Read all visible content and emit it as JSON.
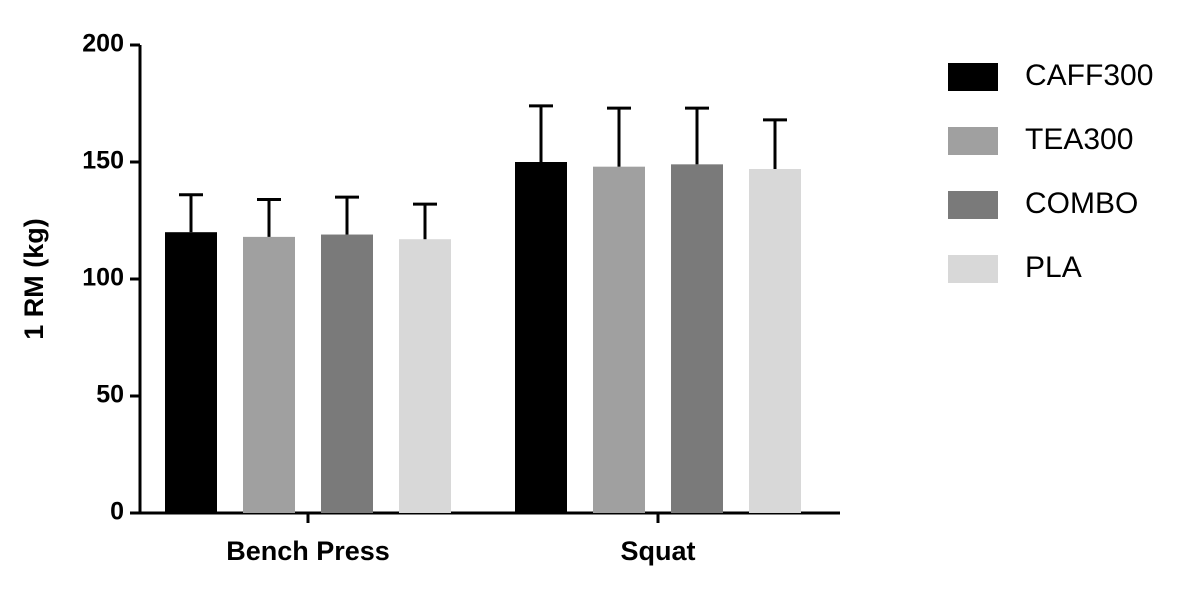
{
  "chart_data": {
    "type": "bar",
    "y_label": "1 RM (kg)",
    "categories": [
      "Bench Press",
      "Squat"
    ],
    "series": [
      {
        "name": "CAFF300",
        "color": "#000000",
        "values": [
          120,
          150
        ],
        "errors": [
          16,
          24
        ]
      },
      {
        "name": "TEA300",
        "color": "#a0a0a0",
        "values": [
          118,
          148
        ],
        "errors": [
          16,
          25
        ]
      },
      {
        "name": "COMBO",
        "color": "#7a7a7a",
        "values": [
          119,
          149
        ],
        "errors": [
          16,
          24
        ]
      },
      {
        "name": "PLA",
        "color": "#d8d8d8",
        "values": [
          117,
          147
        ],
        "errors": [
          15,
          21
        ]
      }
    ],
    "ylim": [
      0,
      200
    ],
    "yticks": [
      0,
      50,
      100,
      150,
      200
    ],
    "grid": false,
    "legend": "right"
  }
}
